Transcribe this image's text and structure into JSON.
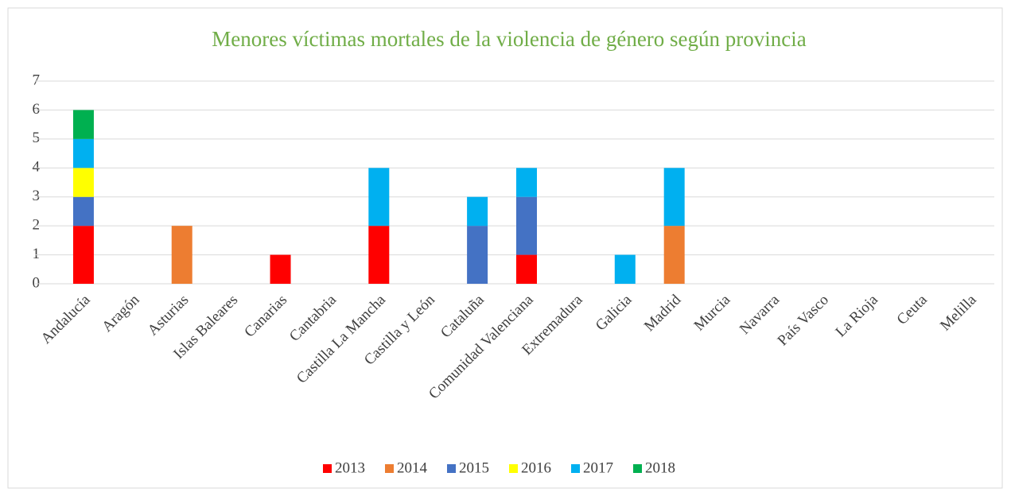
{
  "chart_data": {
    "type": "stacked_bar",
    "title": "Menores víctimas mortales de la violencia de género según provincia",
    "categories": [
      "Andalucía",
      "Aragón",
      "Asturias",
      "Islas Baleares",
      "Canarias",
      "Cantabria",
      "Castilla La Mancha",
      "Castilla y León",
      "Cataluña",
      "Comunidad Valenciana",
      "Extremadura",
      "Galicia",
      "Madrid",
      "Murcia",
      "Navarra",
      "País Vasco",
      "La Rioja",
      "Ceuta",
      "Melilla"
    ],
    "series": [
      {
        "name": "2013",
        "color": "#ff0000",
        "values": [
          2,
          0,
          0,
          0,
          1,
          0,
          2,
          0,
          0,
          1,
          0,
          0,
          0,
          0,
          0,
          0,
          0,
          0,
          0
        ]
      },
      {
        "name": "2014",
        "color": "#ed7d31",
        "values": [
          0,
          0,
          2,
          0,
          0,
          0,
          0,
          0,
          0,
          0,
          0,
          0,
          2,
          0,
          0,
          0,
          0,
          0,
          0
        ]
      },
      {
        "name": "2015",
        "color": "#4472c4",
        "values": [
          1,
          0,
          0,
          0,
          0,
          0,
          0,
          0,
          2,
          2,
          0,
          0,
          0,
          0,
          0,
          0,
          0,
          0,
          0
        ]
      },
      {
        "name": "2016",
        "color": "#ffff00",
        "values": [
          1,
          0,
          0,
          0,
          0,
          0,
          0,
          0,
          0,
          0,
          0,
          0,
          0,
          0,
          0,
          0,
          0,
          0,
          0
        ]
      },
      {
        "name": "2017",
        "color": "#00b0f0",
        "values": [
          1,
          0,
          0,
          0,
          0,
          0,
          2,
          0,
          1,
          1,
          0,
          1,
          2,
          0,
          0,
          0,
          0,
          0,
          0
        ]
      },
      {
        "name": "2018",
        "color": "#00b050",
        "values": [
          1,
          0,
          0,
          0,
          0,
          0,
          0,
          0,
          0,
          0,
          0,
          0,
          0,
          0,
          0,
          0,
          0,
          0,
          0
        ]
      }
    ],
    "ylim": [
      0,
      7
    ],
    "yticks": [
      0,
      1,
      2,
      3,
      4,
      5,
      6,
      7
    ],
    "grid": true,
    "legend": "bottom"
  }
}
